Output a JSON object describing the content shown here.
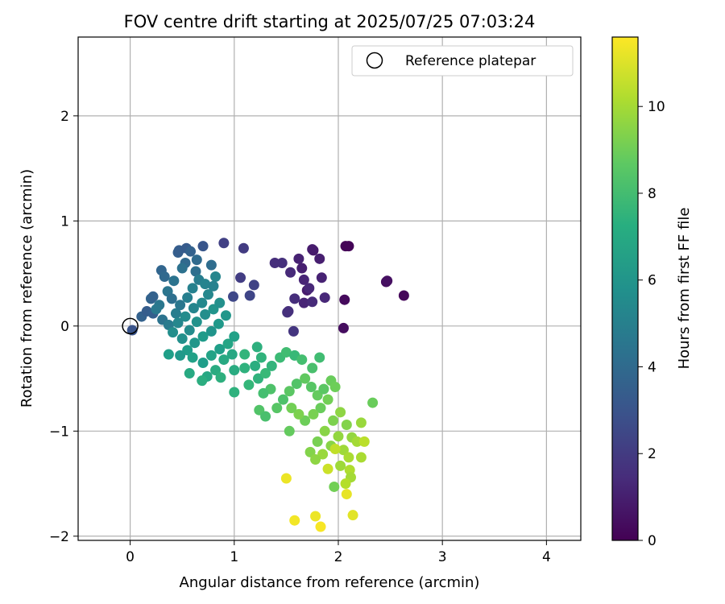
{
  "chart_data": {
    "type": "scatter",
    "title": "FOV centre drift starting at 2025/07/25 07:03:24",
    "xlabel": "Angular distance from reference (arcmin)",
    "ylabel": "Rotation from reference (arcmin)",
    "xlim": [
      -0.5,
      4.33
    ],
    "ylim": [
      -2.04,
      2.75
    ],
    "xticks": [
      0,
      1,
      2,
      3,
      4
    ],
    "xtick_labels": [
      "0",
      "1",
      "2",
      "3",
      "4"
    ],
    "yticks": [
      -2,
      -1,
      0,
      1,
      2
    ],
    "ytick_labels": [
      "−2",
      "−1",
      "0",
      "1",
      "2"
    ],
    "grid": true,
    "legend": {
      "placement": "top-right",
      "entries": [
        "Reference platepar"
      ]
    },
    "reference_point": {
      "name": "Reference platepar",
      "x": 0,
      "y": 0
    },
    "colorbar": {
      "label": "Hours from first FF file",
      "colormap": "viridis",
      "range": [
        0,
        11.6
      ],
      "ticks": [
        0,
        2,
        4,
        6,
        8,
        10
      ],
      "tick_labels": [
        "0",
        "2",
        "4",
        "6",
        "8",
        "10"
      ]
    },
    "points": [
      {
        "x": 2.07,
        "y": 0.76,
        "t": 0.1
      },
      {
        "x": 2.1,
        "y": 0.76,
        "t": 0.1
      },
      {
        "x": 2.46,
        "y": 0.42,
        "t": 0.4
      },
      {
        "x": 2.47,
        "y": 0.43,
        "t": 0.5
      },
      {
        "x": 2.63,
        "y": 0.29,
        "t": 0.2
      },
      {
        "x": 2.06,
        "y": 0.25,
        "t": 0.3
      },
      {
        "x": 2.05,
        "y": -0.02,
        "t": 0.4
      },
      {
        "x": 1.76,
        "y": 0.72,
        "t": 0.8
      },
      {
        "x": 1.75,
        "y": 0.73,
        "t": 0.9
      },
      {
        "x": 1.82,
        "y": 0.64,
        "t": 1.0
      },
      {
        "x": 1.62,
        "y": 0.64,
        "t": 1.1
      },
      {
        "x": 1.65,
        "y": 0.55,
        "t": 1.0
      },
      {
        "x": 1.67,
        "y": 0.44,
        "t": 1.2
      },
      {
        "x": 1.84,
        "y": 0.46,
        "t": 1.1
      },
      {
        "x": 1.7,
        "y": 0.34,
        "t": 0.9
      },
      {
        "x": 1.72,
        "y": 0.36,
        "t": 1.3
      },
      {
        "x": 1.67,
        "y": 0.22,
        "t": 1.2
      },
      {
        "x": 1.75,
        "y": 0.23,
        "t": 1.4
      },
      {
        "x": 1.87,
        "y": 0.27,
        "t": 1.3
      },
      {
        "x": 1.58,
        "y": 0.26,
        "t": 1.5
      },
      {
        "x": 1.54,
        "y": 0.51,
        "t": 1.4
      },
      {
        "x": 1.46,
        "y": 0.6,
        "t": 1.6
      },
      {
        "x": 1.39,
        "y": 0.6,
        "t": 1.5
      },
      {
        "x": 1.51,
        "y": 0.13,
        "t": 1.7
      },
      {
        "x": 1.52,
        "y": 0.14,
        "t": 1.6
      },
      {
        "x": 1.57,
        "y": -0.05,
        "t": 1.8
      },
      {
        "x": 1.09,
        "y": 0.74,
        "t": 2.0
      },
      {
        "x": 0.9,
        "y": 0.79,
        "t": 2.2
      },
      {
        "x": 1.06,
        "y": 0.46,
        "t": 2.1
      },
      {
        "x": 1.19,
        "y": 0.39,
        "t": 2.3
      },
      {
        "x": 1.15,
        "y": 0.29,
        "t": 2.4
      },
      {
        "x": 0.99,
        "y": 0.28,
        "t": 2.5
      },
      {
        "x": 0.02,
        "y": -0.04,
        "t": 3.0
      },
      {
        "x": 0.11,
        "y": 0.09,
        "t": 3.6
      },
      {
        "x": 0.16,
        "y": 0.14,
        "t": 3.4
      },
      {
        "x": 0.22,
        "y": 0.12,
        "t": 3.5
      },
      {
        "x": 0.2,
        "y": 0.26,
        "t": 3.7
      },
      {
        "x": 0.22,
        "y": 0.28,
        "t": 3.6
      },
      {
        "x": 0.3,
        "y": 0.53,
        "t": 3.8
      },
      {
        "x": 0.33,
        "y": 0.47,
        "t": 3.9
      },
      {
        "x": 0.46,
        "y": 0.7,
        "t": 3.5
      },
      {
        "x": 0.47,
        "y": 0.72,
        "t": 3.4
      },
      {
        "x": 0.54,
        "y": 0.74,
        "t": 3.3
      },
      {
        "x": 0.58,
        "y": 0.71,
        "t": 3.6
      },
      {
        "x": 0.7,
        "y": 0.76,
        "t": 3.1
      },
      {
        "x": 0.53,
        "y": 0.6,
        "t": 3.9
      },
      {
        "x": 0.64,
        "y": 0.63,
        "t": 4.0
      },
      {
        "x": 0.78,
        "y": 0.58,
        "t": 4.1
      },
      {
        "x": 0.63,
        "y": 0.52,
        "t": 4.2
      },
      {
        "x": 0.5,
        "y": 0.55,
        "t": 4.3
      },
      {
        "x": 0.42,
        "y": 0.43,
        "t": 4.4
      },
      {
        "x": 0.36,
        "y": 0.33,
        "t": 4.5
      },
      {
        "x": 0.4,
        "y": 0.26,
        "t": 4.2
      },
      {
        "x": 0.28,
        "y": 0.2,
        "t": 4.6
      },
      {
        "x": 0.25,
        "y": 0.16,
        "t": 4.7
      },
      {
        "x": 0.31,
        "y": 0.06,
        "t": 4.4
      },
      {
        "x": 0.37,
        "y": 0.01,
        "t": 4.8
      },
      {
        "x": 0.44,
        "y": 0.12,
        "t": 4.9
      },
      {
        "x": 0.48,
        "y": 0.2,
        "t": 4.6
      },
      {
        "x": 0.55,
        "y": 0.27,
        "t": 5.0
      },
      {
        "x": 0.6,
        "y": 0.36,
        "t": 5.1
      },
      {
        "x": 0.66,
        "y": 0.44,
        "t": 4.9
      },
      {
        "x": 0.72,
        "y": 0.4,
        "t": 5.2
      },
      {
        "x": 0.82,
        "y": 0.47,
        "t": 5.3
      },
      {
        "x": 0.8,
        "y": 0.38,
        "t": 5.1
      },
      {
        "x": 0.75,
        "y": 0.3,
        "t": 5.4
      },
      {
        "x": 0.69,
        "y": 0.22,
        "t": 5.5
      },
      {
        "x": 0.61,
        "y": 0.17,
        "t": 5.3
      },
      {
        "x": 0.53,
        "y": 0.09,
        "t": 5.6
      },
      {
        "x": 0.46,
        "y": 0.03,
        "t": 5.4
      },
      {
        "x": 0.41,
        "y": -0.06,
        "t": 5.7
      },
      {
        "x": 0.5,
        "y": -0.12,
        "t": 5.8
      },
      {
        "x": 0.57,
        "y": -0.04,
        "t": 5.6
      },
      {
        "x": 0.64,
        "y": 0.04,
        "t": 5.9
      },
      {
        "x": 0.72,
        "y": 0.11,
        "t": 5.7
      },
      {
        "x": 0.8,
        "y": 0.16,
        "t": 6.0
      },
      {
        "x": 0.86,
        "y": 0.22,
        "t": 5.8
      },
      {
        "x": 0.92,
        "y": 0.1,
        "t": 6.1
      },
      {
        "x": 0.85,
        "y": 0.02,
        "t": 6.2
      },
      {
        "x": 0.78,
        "y": -0.05,
        "t": 6.0
      },
      {
        "x": 0.7,
        "y": -0.1,
        "t": 6.3
      },
      {
        "x": 0.62,
        "y": -0.16,
        "t": 6.1
      },
      {
        "x": 0.55,
        "y": -0.23,
        "t": 6.4
      },
      {
        "x": 0.48,
        "y": -0.28,
        "t": 6.2
      },
      {
        "x": 0.37,
        "y": -0.27,
        "t": 6.5
      },
      {
        "x": 0.6,
        "y": -0.3,
        "t": 6.6
      },
      {
        "x": 0.7,
        "y": -0.35,
        "t": 6.4
      },
      {
        "x": 0.78,
        "y": -0.28,
        "t": 6.7
      },
      {
        "x": 0.86,
        "y": -0.22,
        "t": 6.5
      },
      {
        "x": 0.94,
        "y": -0.17,
        "t": 6.8
      },
      {
        "x": 1.0,
        "y": -0.1,
        "t": 6.6
      },
      {
        "x": 0.98,
        "y": -0.27,
        "t": 6.9
      },
      {
        "x": 0.9,
        "y": -0.32,
        "t": 7.0
      },
      {
        "x": 0.82,
        "y": -0.42,
        "t": 7.1
      },
      {
        "x": 0.74,
        "y": -0.48,
        "t": 6.9
      },
      {
        "x": 0.69,
        "y": -0.52,
        "t": 7.2
      },
      {
        "x": 0.57,
        "y": -0.45,
        "t": 7.0
      },
      {
        "x": 0.87,
        "y": -0.49,
        "t": 7.3
      },
      {
        "x": 1.0,
        "y": -0.42,
        "t": 7.1
      },
      {
        "x": 1.1,
        "y": -0.4,
        "t": 7.4
      },
      {
        "x": 1.2,
        "y": -0.38,
        "t": 7.2
      },
      {
        "x": 1.26,
        "y": -0.3,
        "t": 7.5
      },
      {
        "x": 1.22,
        "y": -0.2,
        "t": 7.3
      },
      {
        "x": 1.1,
        "y": -0.27,
        "t": 7.6
      },
      {
        "x": 1.0,
        "y": -0.63,
        "t": 7.4
      },
      {
        "x": 1.14,
        "y": -0.56,
        "t": 7.7
      },
      {
        "x": 1.23,
        "y": -0.5,
        "t": 7.5
      },
      {
        "x": 1.3,
        "y": -0.45,
        "t": 7.8
      },
      {
        "x": 1.36,
        "y": -0.38,
        "t": 7.6
      },
      {
        "x": 1.44,
        "y": -0.3,
        "t": 7.9
      },
      {
        "x": 1.5,
        "y": -0.25,
        "t": 8.0
      },
      {
        "x": 1.58,
        "y": -0.28,
        "t": 7.8
      },
      {
        "x": 1.65,
        "y": -0.32,
        "t": 8.1
      },
      {
        "x": 1.75,
        "y": -0.4,
        "t": 8.2
      },
      {
        "x": 1.82,
        "y": -0.3,
        "t": 8.0
      },
      {
        "x": 1.35,
        "y": -0.6,
        "t": 8.3
      },
      {
        "x": 1.28,
        "y": -0.64,
        "t": 8.1
      },
      {
        "x": 1.24,
        "y": -0.8,
        "t": 8.4
      },
      {
        "x": 1.3,
        "y": -0.86,
        "t": 8.2
      },
      {
        "x": 1.41,
        "y": -0.78,
        "t": 8.5
      },
      {
        "x": 1.47,
        "y": -0.7,
        "t": 8.3
      },
      {
        "x": 1.53,
        "y": -0.62,
        "t": 8.6
      },
      {
        "x": 1.6,
        "y": -0.55,
        "t": 8.4
      },
      {
        "x": 1.68,
        "y": -0.5,
        "t": 8.7
      },
      {
        "x": 1.74,
        "y": -0.58,
        "t": 8.5
      },
      {
        "x": 1.8,
        "y": -0.66,
        "t": 8.8
      },
      {
        "x": 1.86,
        "y": -0.6,
        "t": 8.6
      },
      {
        "x": 1.93,
        "y": -0.52,
        "t": 8.9
      },
      {
        "x": 1.97,
        "y": -0.58,
        "t": 9.0
      },
      {
        "x": 1.9,
        "y": -0.7,
        "t": 9.1
      },
      {
        "x": 1.83,
        "y": -0.78,
        "t": 8.9
      },
      {
        "x": 1.76,
        "y": -0.84,
        "t": 9.2
      },
      {
        "x": 1.68,
        "y": -0.9,
        "t": 9.0
      },
      {
        "x": 1.62,
        "y": -0.84,
        "t": 9.3
      },
      {
        "x": 1.55,
        "y": -0.78,
        "t": 9.1
      },
      {
        "x": 1.53,
        "y": -1.0,
        "t": 8.8
      },
      {
        "x": 1.73,
        "y": -1.2,
        "t": 9.4
      },
      {
        "x": 1.8,
        "y": -1.1,
        "t": 9.2
      },
      {
        "x": 1.87,
        "y": -1.0,
        "t": 9.5
      },
      {
        "x": 1.95,
        "y": -0.9,
        "t": 9.3
      },
      {
        "x": 2.02,
        "y": -0.82,
        "t": 9.6
      },
      {
        "x": 2.08,
        "y": -0.94,
        "t": 9.4
      },
      {
        "x": 2.0,
        "y": -1.05,
        "t": 9.7
      },
      {
        "x": 1.93,
        "y": -1.14,
        "t": 9.5
      },
      {
        "x": 1.85,
        "y": -1.22,
        "t": 9.8
      },
      {
        "x": 1.78,
        "y": -1.27,
        "t": 9.6
      },
      {
        "x": 2.05,
        "y": -1.18,
        "t": 9.9
      },
      {
        "x": 2.13,
        "y": -1.06,
        "t": 9.7
      },
      {
        "x": 2.18,
        "y": -1.1,
        "t": 10.0
      },
      {
        "x": 2.1,
        "y": -1.25,
        "t": 10.1
      },
      {
        "x": 2.02,
        "y": -1.33,
        "t": 9.9
      },
      {
        "x": 2.11,
        "y": -1.37,
        "t": 10.2
      },
      {
        "x": 2.12,
        "y": -1.44,
        "t": 10.0
      },
      {
        "x": 2.07,
        "y": -1.5,
        "t": 10.3
      },
      {
        "x": 1.96,
        "y": -1.53,
        "t": 9.1
      },
      {
        "x": 2.22,
        "y": -1.25,
        "t": 10.1
      },
      {
        "x": 2.22,
        "y": -0.92,
        "t": 9.8
      },
      {
        "x": 2.33,
        "y": -0.73,
        "t": 8.9
      },
      {
        "x": 2.25,
        "y": -1.1,
        "t": 10.4
      },
      {
        "x": 1.97,
        "y": -1.17,
        "t": 10.5
      },
      {
        "x": 1.9,
        "y": -1.36,
        "t": 10.7
      },
      {
        "x": 2.08,
        "y": -1.6,
        "t": 11.2
      },
      {
        "x": 2.14,
        "y": -1.8,
        "t": 11.1
      },
      {
        "x": 1.5,
        "y": -1.45,
        "t": 11.3
      },
      {
        "x": 1.58,
        "y": -1.85,
        "t": 11.4
      },
      {
        "x": 1.78,
        "y": -1.81,
        "t": 11.3
      },
      {
        "x": 1.83,
        "y": -1.91,
        "t": 11.5
      }
    ]
  }
}
